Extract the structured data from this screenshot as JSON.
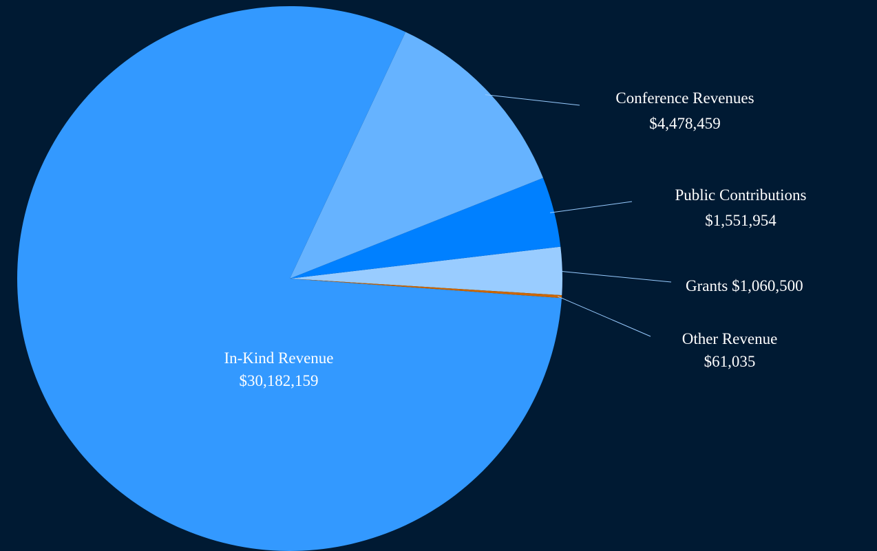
{
  "background_color": "#001a33",
  "chart_data": {
    "type": "pie",
    "title": "",
    "start_direction": "counterclockwise-from-right",
    "slices": [
      {
        "label": "Grants",
        "value": 1060500,
        "value_label": "$1,060,500",
        "color": "#99ccff",
        "label_layout": "inline"
      },
      {
        "label": "Public Contributions",
        "value": 1551954,
        "value_label": "$1,551,954",
        "color": "#0080ff",
        "label_layout": "stacked"
      },
      {
        "label": "Conference Revenues",
        "value": 4478459,
        "value_label": "$4,478,459",
        "color": "#66b3ff",
        "label_layout": "stacked"
      },
      {
        "label": "In-Kind Revenue",
        "value": 30182159,
        "value_label": "$30,182,159",
        "color": "#3399ff",
        "label_layout": "inside"
      },
      {
        "label": "Other Revenue",
        "value": 61035,
        "value_label": "$61,035",
        "color": "#cc6600",
        "label_layout": "stacked"
      }
    ],
    "leader_line_color": "#99ccff",
    "label_color": "#ffffff"
  }
}
